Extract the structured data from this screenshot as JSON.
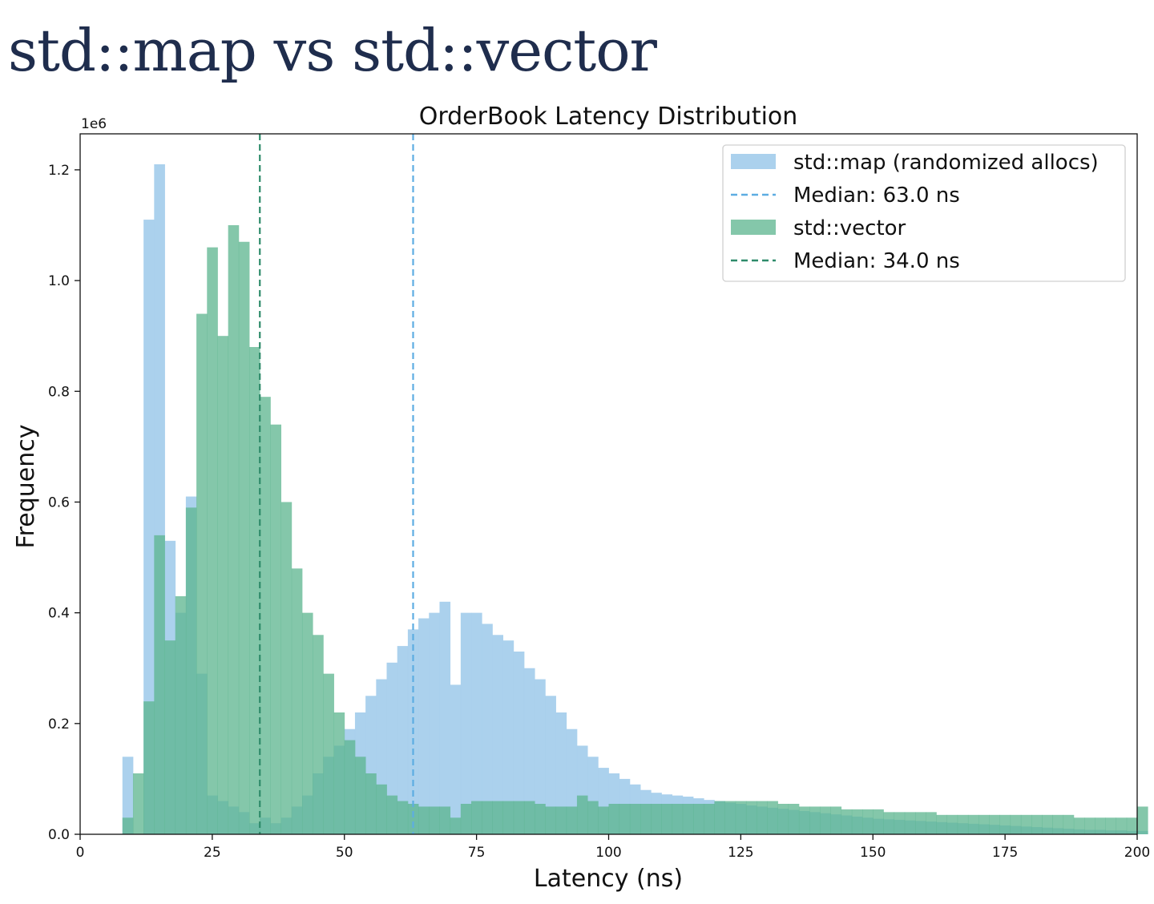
{
  "slide": {
    "title": "std::map vs std::vector"
  },
  "chart_data": {
    "type": "bar",
    "title": "OrderBook Latency Distribution",
    "xlabel": "Latency (ns)",
    "ylabel": "Frequency",
    "y_scale_label": "1e6",
    "xlim": [
      0,
      200
    ],
    "ylim": [
      0,
      1.265
    ],
    "bin_start": 6,
    "bin_width": 2,
    "xticks": [
      0,
      25,
      50,
      75,
      100,
      125,
      150,
      175,
      200
    ],
    "yticks": [
      0.0,
      0.2,
      0.4,
      0.6,
      0.8,
      1.0,
      1.2
    ],
    "ytick_labels": [
      "0.0",
      "0.2",
      "0.4",
      "0.6",
      "0.8",
      "1.0",
      "1.2"
    ],
    "legend_position": "top-right",
    "series": [
      {
        "name": "std::map (randomized allocs)",
        "color": "#a6cfec",
        "values": [
          0.0,
          0.14,
          0.0,
          1.11,
          1.21,
          0.53,
          0.4,
          0.61,
          0.29,
          0.07,
          0.06,
          0.05,
          0.04,
          0.02,
          0.03,
          0.02,
          0.03,
          0.05,
          0.07,
          0.11,
          0.14,
          0.16,
          0.19,
          0.22,
          0.25,
          0.28,
          0.31,
          0.34,
          0.37,
          0.39,
          0.4,
          0.42,
          0.27,
          0.4,
          0.4,
          0.38,
          0.36,
          0.35,
          0.33,
          0.3,
          0.28,
          0.25,
          0.22,
          0.19,
          0.16,
          0.14,
          0.12,
          0.11,
          0.1,
          0.09,
          0.08,
          0.075,
          0.072,
          0.07,
          0.068,
          0.065,
          0.062,
          0.06,
          0.057,
          0.055,
          0.052,
          0.05,
          0.048,
          0.046,
          0.044,
          0.042,
          0.04,
          0.038,
          0.036,
          0.034,
          0.032,
          0.03,
          0.028,
          0.027,
          0.026,
          0.025,
          0.024,
          0.023,
          0.022,
          0.021,
          0.02,
          0.019,
          0.018,
          0.017,
          0.016,
          0.015,
          0.014,
          0.013,
          0.012,
          0.011,
          0.01,
          0.009,
          0.008,
          0.008,
          0.007,
          0.007,
          0.006,
          0.006
        ],
        "median": 63.0,
        "median_label": "Median: 63.0 ns",
        "median_color": "#5dade2"
      },
      {
        "name": "std::vector",
        "color": "#5bb48e",
        "values": [
          0.0,
          0.03,
          0.11,
          0.24,
          0.54,
          0.35,
          0.43,
          0.59,
          0.94,
          1.06,
          0.9,
          1.1,
          1.07,
          0.88,
          0.79,
          0.74,
          0.6,
          0.48,
          0.4,
          0.36,
          0.29,
          0.22,
          0.17,
          0.14,
          0.11,
          0.09,
          0.07,
          0.06,
          0.055,
          0.05,
          0.05,
          0.05,
          0.03,
          0.055,
          0.06,
          0.06,
          0.06,
          0.06,
          0.06,
          0.06,
          0.055,
          0.05,
          0.05,
          0.05,
          0.07,
          0.06,
          0.05,
          0.055,
          0.055,
          0.055,
          0.055,
          0.055,
          0.055,
          0.055,
          0.055,
          0.055,
          0.055,
          0.06,
          0.06,
          0.06,
          0.06,
          0.06,
          0.06,
          0.055,
          0.055,
          0.05,
          0.05,
          0.05,
          0.05,
          0.045,
          0.045,
          0.045,
          0.045,
          0.04,
          0.04,
          0.04,
          0.04,
          0.04,
          0.035,
          0.035,
          0.035,
          0.035,
          0.035,
          0.035,
          0.035,
          0.035,
          0.035,
          0.035,
          0.035,
          0.035,
          0.035,
          0.03,
          0.03,
          0.03,
          0.03,
          0.03,
          0.03,
          0.05
        ],
        "median": 34.0,
        "median_label": "Median: 34.0 ns",
        "median_color": "#2e8b6a"
      }
    ]
  }
}
